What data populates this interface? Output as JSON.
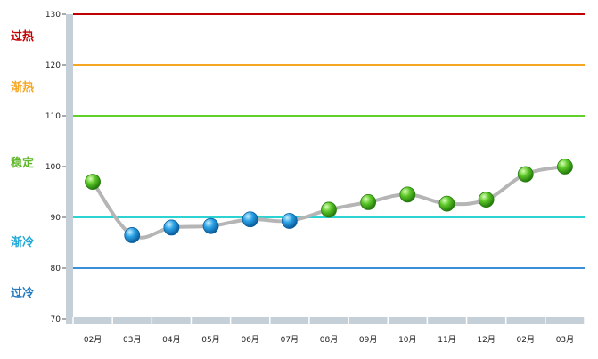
{
  "chart_data": {
    "type": "line",
    "title": "",
    "xlabel": "",
    "ylabel": "",
    "ylim": [
      70,
      130
    ],
    "y_ticks": [
      70,
      80,
      90,
      100,
      110,
      120,
      130
    ],
    "categories": [
      "02月",
      "03月",
      "04月",
      "05月",
      "06月",
      "07月",
      "08月",
      "09月",
      "10月",
      "11月",
      "12月",
      "02月",
      "03月"
    ],
    "series": [
      {
        "values": [
          97,
          86.5,
          88,
          88.3,
          89.6,
          89.3,
          91.5,
          93,
          94.5,
          92.7,
          93.5,
          98.5,
          100
        ]
      }
    ],
    "threshold_lines": [
      {
        "value": 130,
        "color": "#c00000"
      },
      {
        "value": 120,
        "color": "#f5a623"
      },
      {
        "value": 110,
        "color": "#5fd12a"
      },
      {
        "value": 90,
        "color": "#2dd2d2"
      },
      {
        "value": 80,
        "color": "#3b8fd9"
      }
    ],
    "zones": [
      {
        "label": "过热",
        "value": 126,
        "color": "#c00000"
      },
      {
        "label": "渐热",
        "value": 116,
        "color": "#f5a623"
      },
      {
        "label": "稳定",
        "value": 101,
        "color": "#5fb82a"
      },
      {
        "label": "渐冷",
        "value": 85.5,
        "color": "#1fa7d6"
      },
      {
        "label": "过冷",
        "value": 75.5,
        "color": "#1f78c1"
      }
    ],
    "point_colors": {
      "above": "#3fae1f",
      "below": "#1e8fd8"
    },
    "split_value": 90,
    "grid": false,
    "legend": "none"
  }
}
